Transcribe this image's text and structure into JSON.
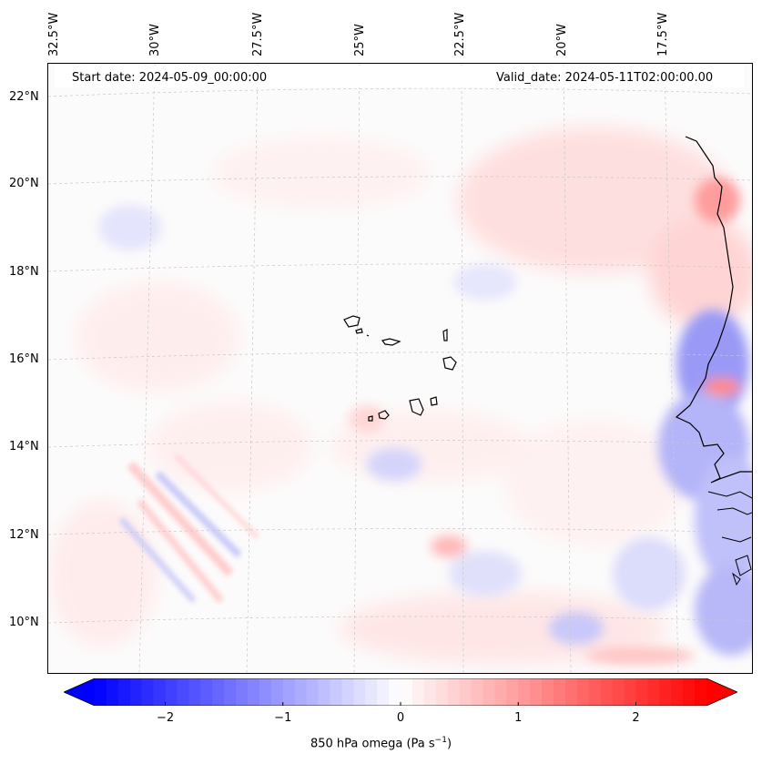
{
  "header": {
    "start_date": "Start date: 2024-05-09_00:00:00",
    "valid_date": "Valid_date: 2024-05-11T02:00:00.00"
  },
  "map": {
    "longitude_labels": [
      "32.5°W",
      "30°W",
      "27.5°W",
      "25°W",
      "22.5°W",
      "20°W",
      "17.5°W"
    ],
    "latitude_labels": [
      "22°N",
      "20°N",
      "18°N",
      "16°N",
      "14°N",
      "12°N",
      "10°N"
    ],
    "field": "850 hPa omega",
    "colors": {
      "negative": "#0000ff",
      "zero": "#ffffff",
      "positive": "#ff0000",
      "coast": "#000000"
    }
  },
  "colorbar": {
    "label_prefix": "850 hPa omega (Pa s",
    "label_exp": "−1",
    "label_suffix": ")",
    "ticks": [
      "−2",
      "−1",
      "0",
      "1",
      "2"
    ],
    "tick_values": [
      -2,
      -1,
      0,
      1,
      2
    ],
    "range": [
      -2.6,
      2.6
    ]
  }
}
